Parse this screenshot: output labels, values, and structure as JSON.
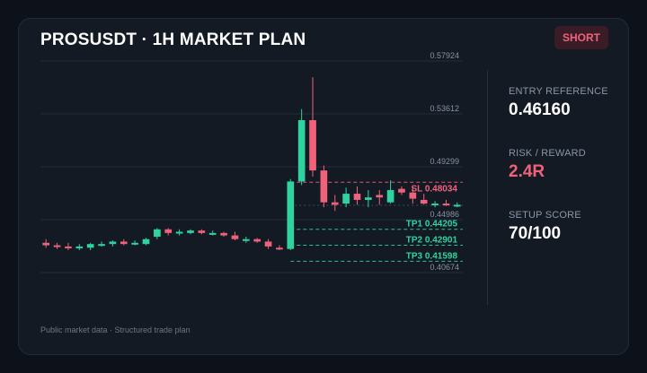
{
  "header": {
    "title": "PROSUSDT · 1H MARKET PLAN",
    "badge": "SHORT"
  },
  "footer": {
    "note": "Public market data · Structured trade plan"
  },
  "stats": [
    {
      "label": "ENTRY REFERENCE",
      "value": "0.46160",
      "color": "#ffffff"
    },
    {
      "label": "RISK / REWARD",
      "value": "2.4R",
      "color": "#f0627a"
    },
    {
      "label": "SETUP SCORE",
      "value": "70/100",
      "color": "#ffffff"
    }
  ],
  "colors": {
    "bull": "#2ed3a0",
    "bear": "#f0627a",
    "grid": "#222c38",
    "tp": "#2ed3a0",
    "sl": "#f0627a"
  },
  "chart_data": {
    "type": "candlestick",
    "ylim": [
      0.40674,
      0.57924
    ],
    "y_ticks": [
      "0.57924",
      "0.53612",
      "0.49299",
      "0.44986",
      "0.40674"
    ],
    "levels": [
      {
        "name": "SL",
        "value": 0.48034,
        "label": "SL 0.48034",
        "kind": "sl"
      },
      {
        "name": "Entry",
        "value": 0.4616,
        "label": "",
        "kind": "entry"
      },
      {
        "name": "TP1",
        "value": 0.44205,
        "label": "TP1 0.44205",
        "kind": "tp"
      },
      {
        "name": "TP2",
        "value": 0.42901,
        "label": "TP2 0.42901",
        "kind": "tp"
      },
      {
        "name": "TP3",
        "value": 0.41598,
        "label": "TP3 0.41598",
        "kind": "tp"
      }
    ],
    "candles": [
      {
        "o": 0.431,
        "h": 0.434,
        "l": 0.427,
        "c": 0.429
      },
      {
        "o": 0.429,
        "h": 0.431,
        "l": 0.426,
        "c": 0.428
      },
      {
        "o": 0.428,
        "h": 0.431,
        "l": 0.425,
        "c": 0.427
      },
      {
        "o": 0.427,
        "h": 0.43,
        "l": 0.425,
        "c": 0.428
      },
      {
        "o": 0.427,
        "h": 0.431,
        "l": 0.425,
        "c": 0.43
      },
      {
        "o": 0.43,
        "h": 0.432,
        "l": 0.428,
        "c": 0.43
      },
      {
        "o": 0.43,
        "h": 0.433,
        "l": 0.428,
        "c": 0.432
      },
      {
        "o": 0.432,
        "h": 0.434,
        "l": 0.429,
        "c": 0.43
      },
      {
        "o": 0.43,
        "h": 0.433,
        "l": 0.429,
        "c": 0.431
      },
      {
        "o": 0.43,
        "h": 0.435,
        "l": 0.429,
        "c": 0.434
      },
      {
        "o": 0.436,
        "h": 0.443,
        "l": 0.434,
        "c": 0.442
      },
      {
        "o": 0.442,
        "h": 0.443,
        "l": 0.437,
        "c": 0.439
      },
      {
        "o": 0.439,
        "h": 0.442,
        "l": 0.437,
        "c": 0.44
      },
      {
        "o": 0.439,
        "h": 0.442,
        "l": 0.438,
        "c": 0.441
      },
      {
        "o": 0.441,
        "h": 0.442,
        "l": 0.438,
        "c": 0.439
      },
      {
        "o": 0.439,
        "h": 0.441,
        "l": 0.437,
        "c": 0.439
      },
      {
        "o": 0.439,
        "h": 0.44,
        "l": 0.436,
        "c": 0.437
      },
      {
        "o": 0.437,
        "h": 0.44,
        "l": 0.433,
        "c": 0.434
      },
      {
        "o": 0.433,
        "h": 0.436,
        "l": 0.431,
        "c": 0.434
      },
      {
        "o": 0.434,
        "h": 0.435,
        "l": 0.431,
        "c": 0.432
      },
      {
        "o": 0.432,
        "h": 0.434,
        "l": 0.426,
        "c": 0.428
      },
      {
        "o": 0.427,
        "h": 0.429,
        "l": 0.425,
        "c": 0.426
      },
      {
        "o": 0.426,
        "h": 0.483,
        "l": 0.425,
        "c": 0.481
      },
      {
        "o": 0.481,
        "h": 0.54,
        "l": 0.478,
        "c": 0.531
      },
      {
        "o": 0.531,
        "h": 0.566,
        "l": 0.485,
        "c": 0.49
      },
      {
        "o": 0.49,
        "h": 0.494,
        "l": 0.46,
        "c": 0.464
      },
      {
        "o": 0.464,
        "h": 0.47,
        "l": 0.457,
        "c": 0.462
      },
      {
        "o": 0.463,
        "h": 0.476,
        "l": 0.46,
        "c": 0.471
      },
      {
        "o": 0.471,
        "h": 0.477,
        "l": 0.462,
        "c": 0.466
      },
      {
        "o": 0.466,
        "h": 0.474,
        "l": 0.46,
        "c": 0.468
      },
      {
        "o": 0.47,
        "h": 0.474,
        "l": 0.462,
        "c": 0.468
      },
      {
        "o": 0.464,
        "h": 0.482,
        "l": 0.463,
        "c": 0.474
      },
      {
        "o": 0.475,
        "h": 0.477,
        "l": 0.47,
        "c": 0.472
      },
      {
        "o": 0.472,
        "h": 0.476,
        "l": 0.463,
        "c": 0.467
      },
      {
        "o": 0.466,
        "h": 0.471,
        "l": 0.462,
        "c": 0.463
      },
      {
        "o": 0.462,
        "h": 0.465,
        "l": 0.46,
        "c": 0.463
      },
      {
        "o": 0.463,
        "h": 0.466,
        "l": 0.461,
        "c": 0.462
      },
      {
        "o": 0.462,
        "h": 0.464,
        "l": 0.46,
        "c": 0.462
      }
    ]
  }
}
